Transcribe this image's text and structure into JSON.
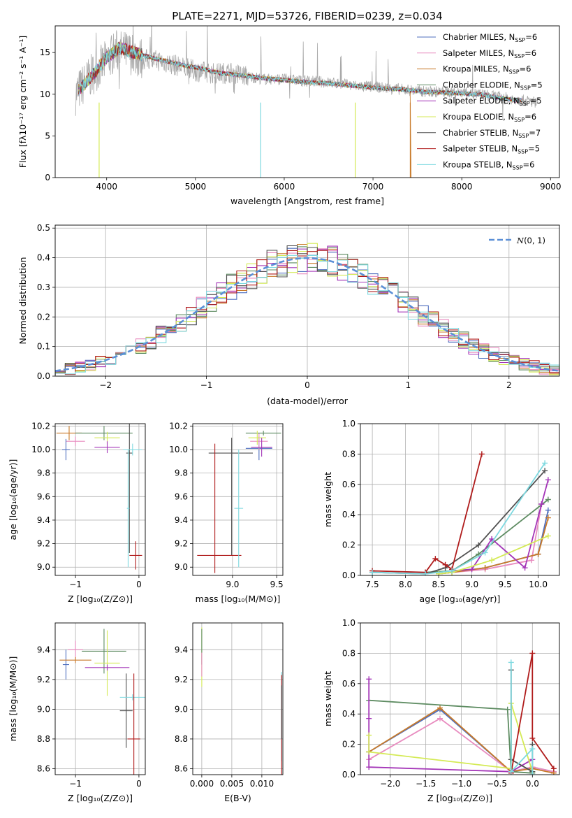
{
  "chart_data": [
    {
      "type": "line",
      "title": "PLATE=2271, MJD=53726, FIBERID=0239, z=0.034",
      "xlabel": "wavelength [Angstrom, rest frame]",
      "ylabel": "Flux [fλ10⁻¹⁷ erg cm⁻² s⁻¹ A⁻¹]",
      "xlim": [
        3420,
        9100
      ],
      "ylim": [
        0,
        18.2
      ],
      "xticks": [
        "4000",
        "5000",
        "6000",
        "7000",
        "8000",
        "9000"
      ],
      "yticks": [
        "0",
        "5",
        "10",
        "15"
      ],
      "legend_position": "top-right",
      "observed_spectrum": {
        "color": "#a9a9a9",
        "x": [
          3650,
          3800,
          3950,
          4100,
          4250,
          4400,
          4600,
          4800,
          5000,
          5200,
          5400,
          5600,
          5800,
          6000,
          6200,
          6400,
          6600,
          6800,
          7000,
          7200,
          7400,
          7600,
          7800,
          8000,
          8200,
          8400,
          8600,
          8800
        ],
        "y": [
          10.0,
          12.0,
          13.5,
          15.2,
          15.0,
          14.2,
          14.0,
          13.4,
          12.8,
          12.5,
          12.6,
          12.1,
          11.8,
          11.8,
          11.6,
          11.5,
          11.3,
          11.0,
          10.9,
          10.7,
          10.5,
          10.3,
          10.3,
          10.2,
          10.0,
          9.7,
          9.4,
          9.1
        ]
      },
      "series": [
        {
          "name": "Chabrier MILES, N$_{SSP}$=6",
          "label_main": "Chabrier MILES, N",
          "label_sub": "SSP",
          "label_tail": "=6",
          "color": "#4f6fbf"
        },
        {
          "name": "Salpeter MILES, N$_{SSP}$=6",
          "label_main": "Salpeter MILES, N",
          "label_sub": "SSP",
          "label_tail": "=6",
          "color": "#e88bbf"
        },
        {
          "name": "Kroupa MILES, N$_{SSP}$=6",
          "label_main": "Kroupa MILES, N",
          "label_sub": "SSP",
          "label_tail": "=6",
          "color": "#c87a2a"
        },
        {
          "name": "Chabrier ELODIE, N$_{SSP}$=5",
          "label_main": "Chabrier ELODIE, N",
          "label_sub": "SSP",
          "label_tail": "=5",
          "color": "#5e8c62"
        },
        {
          "name": "Salpeter ELODIE, N$_{SSP}$=5",
          "label_main": "Salpeter ELODIE, N",
          "label_sub": "SSP",
          "label_tail": "=5",
          "color": "#a436b8"
        },
        {
          "name": "Kroupa ELODIE, N$_{SSP}$=6",
          "label_main": "Kroupa ELODIE, N",
          "label_sub": "SSP",
          "label_tail": "=6",
          "color": "#d4ea55"
        },
        {
          "name": "Chabrier STELIB, N$_{SSP}$=7",
          "label_main": "Chabrier STELIB, N",
          "label_sub": "SSP",
          "label_tail": "=7",
          "color": "#505050"
        },
        {
          "name": "Salpeter STELIB, N$_{SSP}$=5",
          "label_main": "Salpeter STELIB, N",
          "label_sub": "SSP",
          "label_tail": "=5",
          "color": "#b01c1c"
        },
        {
          "name": "Kroupa STELIB, N$_{SSP}$=6",
          "label_main": "Kroupa STELIB, N",
          "label_sub": "SSP",
          "label_tail": "=6",
          "color": "#7ed9e0"
        }
      ],
      "model_curve": {
        "x": [
          3700,
          3850,
          4000,
          4150,
          4300,
          4500,
          4700,
          4900,
          5100,
          5300,
          5500,
          5700,
          5900,
          6100,
          6300,
          6500,
          6700,
          6900,
          7100,
          7300,
          7400,
          7600,
          7800,
          8000,
          8200,
          8400,
          8600
        ],
        "y": [
          10.6,
          12.4,
          14.4,
          15.6,
          15.0,
          14.4,
          13.9,
          13.4,
          13.0,
          12.5,
          12.3,
          12.0,
          11.8,
          11.6,
          11.4,
          11.3,
          11.1,
          10.9,
          10.7,
          10.6,
          10.5,
          10.3,
          10.2,
          10.1,
          10.0,
          9.6,
          9.3
        ]
      }
    },
    {
      "type": "histogram",
      "xlabel": "(data-model)/error",
      "ylabel": "Normed distribution",
      "xlim": [
        -2.5,
        2.5
      ],
      "ylim": [
        0,
        0.51
      ],
      "xticks": [
        "−2",
        "−1",
        "0",
        "1",
        "2"
      ],
      "yticks": [
        "0.0",
        "0.1",
        "0.2",
        "0.3",
        "0.4",
        "0.5"
      ],
      "grid": true,
      "legend_position": "top-right",
      "reference_curve": {
        "name": "N(0,1)",
        "label_text": "(0, 1)",
        "style": "dashed",
        "color": "#5b8fd6"
      }
    },
    {
      "type": "scatter",
      "xlabel": "Z [log₁₀(Z/Z⊙)]",
      "ylabel": "age  [log₁₀(age/yr)]",
      "xlim": [
        -1.32,
        0.1
      ],
      "ylim": [
        8.93,
        10.22
      ],
      "xticks": [
        "−1",
        "0"
      ],
      "yticks": [
        "9.0",
        "9.2",
        "9.4",
        "9.6",
        "9.8",
        "10.0",
        "10.2"
      ],
      "points": [
        {
          "x": -1.1,
          "xerr": 0.2,
          "y": 10.14,
          "yerr": 0.06,
          "color": "#c87a2a"
        },
        {
          "x": -1.0,
          "xerr": 0.15,
          "y": 10.07,
          "yerr": 0.04,
          "color": "#e88bbf"
        },
        {
          "x": -1.15,
          "xerr": 0.06,
          "y": 10.0,
          "yerr": 0.09,
          "color": "#4f6fbf"
        },
        {
          "x": -0.55,
          "xerr": 0.45,
          "y": 10.14,
          "yerr": 0.06,
          "color": "#5e8c62"
        },
        {
          "x": -0.5,
          "xerr": 0.2,
          "y": 10.1,
          "yerr": 0.05,
          "color": "#d4ea55"
        },
        {
          "x": -0.5,
          "xerr": 0.2,
          "y": 10.02,
          "yerr": 0.05,
          "color": "#a436b8"
        },
        {
          "x": -0.15,
          "xerr": 0.05,
          "y": 9.97,
          "yerr": 0.85,
          "color": "#505050"
        },
        {
          "x": -0.1,
          "xerr": 0.15,
          "y": 10.0,
          "yerr": 0.05,
          "color": "#7ed9e0"
        },
        {
          "x": -0.05,
          "xerr": 0.1,
          "y": 9.1,
          "yerr": 0.12,
          "color": "#b01c1c"
        },
        {
          "x": -0.17,
          "xerr": 0.02,
          "y": 9.5,
          "yerr": 0.5,
          "color": "#7ed9e0"
        }
      ]
    },
    {
      "type": "scatter",
      "xlabel": "mass [log₁₀(M/M⊙)]",
      "xlim": [
        8.55,
        9.57
      ],
      "ylim": [
        8.93,
        10.22
      ],
      "xticks": [
        "9.0",
        "9.5"
      ],
      "yticks": [
        "9.0",
        "9.2",
        "9.4",
        "9.6",
        "9.8",
        "10.0",
        "10.2"
      ],
      "points": [
        {
          "x": 8.98,
          "xerr": 0.25,
          "y": 9.97,
          "yerr": 0.0,
          "color": "#505050"
        },
        {
          "x": 8.99,
          "xerr": 0.0,
          "y": 9.6,
          "yerr": 0.5,
          "color": "#505050"
        },
        {
          "x": 8.8,
          "xerr": 0.0,
          "y": 9.5,
          "yerr": 0.55,
          "color": "#b01c1c"
        },
        {
          "x": 8.85,
          "xerr": 0.25,
          "y": 9.1,
          "yerr": 0.0,
          "color": "#b01c1c"
        },
        {
          "x": 9.07,
          "xerr": 0.05,
          "y": 9.5,
          "yerr": 0.5,
          "color": "#7ed9e0"
        },
        {
          "x": 9.3,
          "xerr": 0.15,
          "y": 10.01,
          "yerr": 0.1,
          "color": "#4f6fbf"
        },
        {
          "x": 9.3,
          "xerr": 0.1,
          "y": 10.07,
          "yerr": 0.07,
          "color": "#e88bbf"
        },
        {
          "x": 9.35,
          "xerr": 0.2,
          "y": 10.14,
          "yerr": 0.02,
          "color": "#5e8c62"
        },
        {
          "x": 9.28,
          "xerr": 0.1,
          "y": 10.1,
          "yerr": 0.06,
          "color": "#d4ea55"
        },
        {
          "x": 9.33,
          "xerr": 0.12,
          "y": 10.02,
          "yerr": 0.08,
          "color": "#a436b8"
        }
      ]
    },
    {
      "type": "line",
      "xlabel": "age  [log₁₀(age/yr)]",
      "ylabel": "mass weight",
      "xlim": [
        7.32,
        10.32
      ],
      "ylim": [
        0,
        1.0
      ],
      "xticks": [
        "7.5",
        "8.0",
        "8.5",
        "9.0",
        "9.5",
        "10.0"
      ],
      "yticks": [
        "0.0",
        "0.2",
        "0.4",
        "0.6",
        "0.8",
        "1.0"
      ],
      "grid": true,
      "series": [
        {
          "name": "Chabrier MILES",
          "color": "#4f6fbf",
          "x": [
            8.5,
            8.7,
            9.2,
            10.0,
            10.15
          ],
          "y": [
            0.01,
            0.02,
            0.05,
            0.14,
            0.43
          ]
        },
        {
          "name": "Salpeter MILES",
          "color": "#e88bbf",
          "x": [
            8.5,
            8.7,
            9.2,
            9.9,
            10.05
          ],
          "y": [
            0.01,
            0.02,
            0.04,
            0.1,
            0.47
          ]
        },
        {
          "name": "Kroupa MILES",
          "color": "#c87a2a",
          "x": [
            8.5,
            8.7,
            9.2,
            10.0,
            10.15
          ],
          "y": [
            0.01,
            0.02,
            0.05,
            0.14,
            0.38
          ]
        },
        {
          "name": "Chabrier ELODIE",
          "color": "#5e8c62",
          "x": [
            8.3,
            8.7,
            9.1,
            10.15
          ],
          "y": [
            0.02,
            0.03,
            0.14,
            0.5
          ]
        },
        {
          "name": "Salpeter ELODIE",
          "color": "#a436b8",
          "x": [
            8.7,
            9.0,
            9.3,
            9.8,
            10.05,
            10.15
          ],
          "y": [
            0.03,
            0.04,
            0.24,
            0.05,
            0.47,
            0.63
          ]
        },
        {
          "name": "Kroupa ELODIE",
          "color": "#d4ea55",
          "x": [
            8.5,
            8.7,
            9.3,
            10.15
          ],
          "y": [
            0.01,
            0.02,
            0.1,
            0.26
          ]
        },
        {
          "name": "Chabrier STELIB",
          "color": "#505050",
          "x": [
            7.5,
            8.3,
            8.6,
            9.1,
            10.1
          ],
          "y": [
            0.02,
            0.01,
            0.05,
            0.2,
            0.69
          ]
        },
        {
          "name": "Salpeter STELIB",
          "color": "#b01c1c",
          "x": [
            7.5,
            8.3,
            8.45,
            8.6,
            8.7,
            9.15
          ],
          "y": [
            0.03,
            0.02,
            0.11,
            0.07,
            0.04,
            0.8
          ]
        },
        {
          "name": "Kroupa STELIB",
          "color": "#7ed9e0",
          "x": [
            7.5,
            8.3,
            8.7,
            9.2,
            10.1
          ],
          "y": [
            0.02,
            0.01,
            0.03,
            0.15,
            0.74
          ]
        }
      ]
    },
    {
      "type": "scatter",
      "xlabel": "Z [log₁₀(Z/Z⊙)]",
      "ylabel": "mass [log₁₀(M/M⊙)]",
      "xlim": [
        -1.32,
        0.1
      ],
      "ylim": [
        8.56,
        9.58
      ],
      "xticks": [
        "−1",
        "0"
      ],
      "yticks": [
        "8.6",
        "8.8",
        "9.0",
        "9.2",
        "9.4"
      ],
      "points": [
        {
          "x": -1.0,
          "xerr": 0.12,
          "y": 9.4,
          "yerr": 0.06,
          "color": "#e88bbf"
        },
        {
          "x": -1.15,
          "xerr": 0.05,
          "y": 9.3,
          "yerr": 0.1,
          "color": "#4f6fbf"
        },
        {
          "x": -1.0,
          "xerr": 0.25,
          "y": 9.33,
          "yerr": 0.02,
          "color": "#c87a2a"
        },
        {
          "x": -0.55,
          "xerr": 0.35,
          "y": 9.39,
          "yerr": 0.15,
          "color": "#5e8c62"
        },
        {
          "x": -0.5,
          "xerr": 0.2,
          "y": 9.31,
          "yerr": 0.22,
          "color": "#d4ea55"
        },
        {
          "x": -0.5,
          "xerr": 0.35,
          "y": 9.28,
          "yerr": 0.02,
          "color": "#a436b8"
        },
        {
          "x": -0.2,
          "xerr": 0.1,
          "y": 8.99,
          "yerr": 0.25,
          "color": "#505050"
        },
        {
          "x": -0.1,
          "xerr": 0.2,
          "y": 9.08,
          "yerr": 0.02,
          "color": "#7ed9e0"
        },
        {
          "x": -0.08,
          "xerr": 0.1,
          "y": 8.8,
          "yerr": 0.44,
          "color": "#b01c1c"
        }
      ]
    },
    {
      "type": "scatter",
      "xlabel": "E(B-V)",
      "xlim": [
        -0.0015,
        0.0135
      ],
      "ylim": [
        8.56,
        9.58
      ],
      "xticks": [
        "0.000",
        "0.005",
        "0.010"
      ],
      "yticks": [
        "8.6",
        "8.8",
        "9.0",
        "9.2",
        "9.4"
      ],
      "points": [
        {
          "x": 0.0,
          "xerr": 0.0,
          "y": 9.35,
          "yerr": 0.2,
          "color": "#d4ea55"
        },
        {
          "x": 0.0,
          "xerr": 0.0,
          "y": 9.42,
          "yerr": 0.12,
          "color": "#5e8c62"
        },
        {
          "x": 0.0,
          "xerr": 0.0,
          "y": 9.3,
          "yerr": 0.08,
          "color": "#e88bbf"
        },
        {
          "x": 0.0133,
          "xerr": 0.0,
          "y": 8.95,
          "yerr": 0.3,
          "color": "#7ed9e0"
        },
        {
          "x": 0.0133,
          "xerr": 0.0,
          "y": 8.85,
          "yerr": 0.38,
          "color": "#b01c1c"
        },
        {
          "x": 0.0133,
          "xerr": 0.0,
          "y": 8.98,
          "yerr": 0.18,
          "color": "#505050"
        }
      ]
    },
    {
      "type": "line",
      "xlabel": "Z [log₁₀(Z/Z⊙)]",
      "ylabel": "mass weight",
      "xlim": [
        -2.42,
        0.38
      ],
      "ylim": [
        0,
        1.0
      ],
      "xticks": [
        "−2.0",
        "−1.5",
        "−1.0",
        "−0.5",
        "0.0"
      ],
      "yticks": [
        "0.0",
        "0.2",
        "0.4",
        "0.6",
        "0.8",
        "1.0"
      ],
      "grid": true,
      "series": [
        {
          "name": "Chabrier MILES",
          "color": "#4f6fbf",
          "x": [
            -2.3,
            -1.3,
            -0.3,
            0.0,
            0.3
          ],
          "y": [
            0.15,
            0.43,
            0.02,
            0.05,
            0.02
          ]
        },
        {
          "name": "Salpeter MILES",
          "color": "#e88bbf",
          "x": [
            -2.3,
            -1.3,
            -0.3,
            0.0,
            0.3
          ],
          "y": [
            0.1,
            0.37,
            0.02,
            0.05,
            0.02
          ]
        },
        {
          "name": "Kroupa MILES",
          "color": "#c87a2a",
          "x": [
            -2.3,
            -1.3,
            -0.3,
            0.0,
            0.3
          ],
          "y": [
            0.15,
            0.44,
            0.02,
            0.04,
            0.01
          ]
        },
        {
          "name": "Chabrier ELODIE",
          "color": "#5e8c62",
          "x": [
            -2.3,
            -0.35,
            -0.3,
            0.0
          ],
          "y": [
            0.49,
            0.43,
            0.02,
            0.01
          ]
        },
        {
          "name": "Salpeter ELODIE",
          "color": "#a436b8",
          "x": [
            -2.3,
            -2.3,
            -2.3,
            -0.3,
            0.0
          ],
          "y": [
            0.63,
            0.37,
            0.05,
            0.02,
            0.1
          ]
        },
        {
          "name": "Kroupa ELODIE",
          "color": "#d4ea55",
          "x": [
            -2.3,
            -2.3,
            -0.3,
            -0.3,
            0.0
          ],
          "y": [
            0.26,
            0.15,
            0.04,
            0.47,
            0.02
          ]
        },
        {
          "name": "Chabrier STELIB",
          "color": "#505050",
          "x": [
            -0.3,
            -0.3,
            0.0,
            0.0
          ],
          "y": [
            0.69,
            0.1,
            0.02,
            0.2
          ]
        },
        {
          "name": "Salpeter STELIB",
          "color": "#b01c1c",
          "x": [
            -0.3,
            0.0,
            0.0,
            0.3
          ],
          "y": [
            0.01,
            0.8,
            0.24,
            0.04
          ]
        },
        {
          "name": "Kroupa STELIB",
          "color": "#7ed9e0",
          "x": [
            -0.3,
            -0.3,
            0.0,
            0.0
          ],
          "y": [
            0.74,
            0.02,
            0.17,
            0.0
          ]
        }
      ]
    }
  ]
}
